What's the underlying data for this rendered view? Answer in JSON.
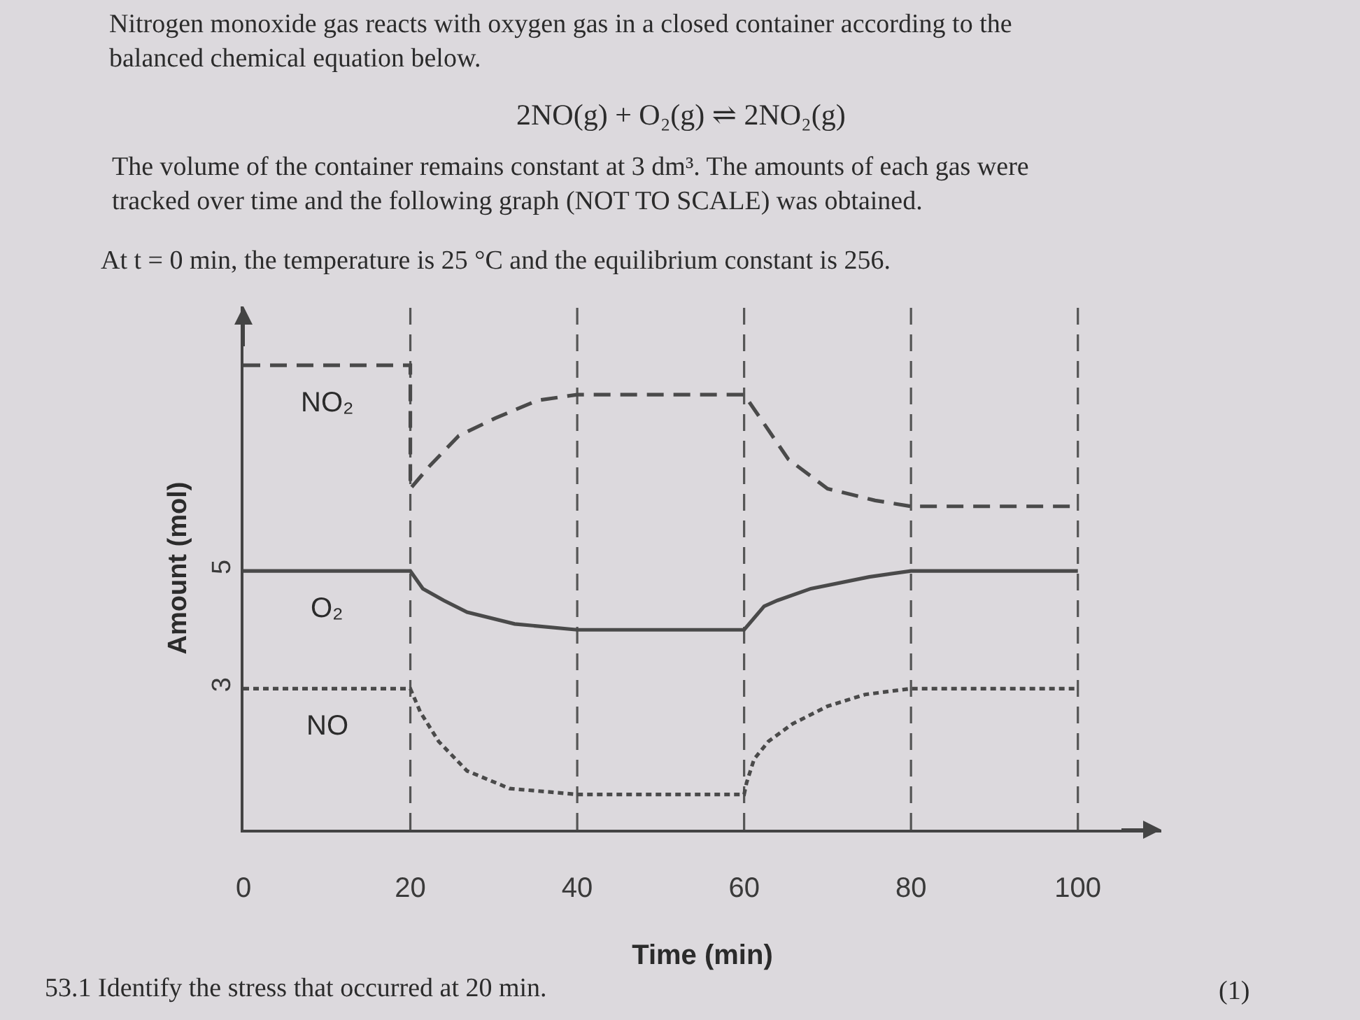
{
  "chart_data": {
    "type": "line",
    "title": "Nitrogen monoxide gas reacts with oxygen gas in a closed container according to the balanced chemical equation below.",
    "subtitle": "2NO(g) + O₂(g) ⇌ 2NO₂(g)",
    "xlabel": "Time (min)",
    "ylabel": "Amount (mol)",
    "annotations": [
      "The volume of the container remains constant at 3 dm³. The amounts of each gas were tracked over time and the following graph (NOT TO SCALE) was obtained.",
      "At t = 0 min, the temperature is 25 °C and the equilibrium constant is 256.",
      "53.1 Identify the stress that occurred at 20 min.",
      "(1)"
    ],
    "xlim": [
      0,
      110
    ],
    "xticks": [
      0,
      20,
      40,
      60,
      80,
      100
    ],
    "ylim": [
      0.6,
      9.5
    ],
    "yticks": [
      3,
      5
    ],
    "grid": false,
    "legend": false,
    "ref_lines": [
      {
        "axis": "x",
        "value": 20,
        "line_style": "dashed",
        "color": "#555555"
      },
      {
        "axis": "x",
        "value": 40,
        "line_style": "dashed",
        "color": "#555555"
      },
      {
        "axis": "x",
        "value": 60,
        "line_style": "dashed",
        "color": "#555555"
      },
      {
        "axis": "x",
        "value": 80,
        "line_style": "dashed",
        "color": "#555555"
      },
      {
        "axis": "x",
        "value": 100,
        "line_style": "dashed",
        "color": "#555555"
      }
    ],
    "series": [
      {
        "name": "NO₂",
        "color": "#4a4a4a",
        "line_style": "dashed",
        "x": [
          0,
          20,
          20,
          22.4,
          25.8,
          30.2,
          35.2,
          40,
          60,
          62.9,
          65.3,
          70,
          75.7,
          80,
          100
        ],
        "values": [
          8.5,
          8.5,
          6.4,
          6.8,
          7.3,
          7.6,
          7.9,
          8.0,
          8.0,
          7.4,
          6.9,
          6.4,
          6.2,
          6.1,
          6.1
        ]
      },
      {
        "name": "O₂",
        "color": "#4a4a4a",
        "line_style": "solid",
        "x": [
          0,
          20,
          21.5,
          24,
          26.8,
          32.5,
          40,
          60,
          62.4,
          64,
          68,
          75,
          80,
          100
        ],
        "values": [
          5,
          5,
          4.7,
          4.5,
          4.3,
          4.1,
          4.0,
          4.0,
          4.4,
          4.5,
          4.7,
          4.9,
          5,
          5
        ]
      },
      {
        "name": "NO",
        "color": "#4a4a4a",
        "line_style": "dotted",
        "x": [
          0,
          20,
          21.2,
          23.4,
          26.8,
          31.9,
          40,
          60,
          60.3,
          61.2,
          62.9,
          65.8,
          70,
          74.5,
          80,
          100
        ],
        "values": [
          3,
          3,
          2.6,
          2.1,
          1.6,
          1.3,
          1.2,
          1.2,
          1.4,
          1.8,
          2.1,
          2.4,
          2.7,
          2.9,
          3,
          3
        ]
      }
    ]
  }
}
